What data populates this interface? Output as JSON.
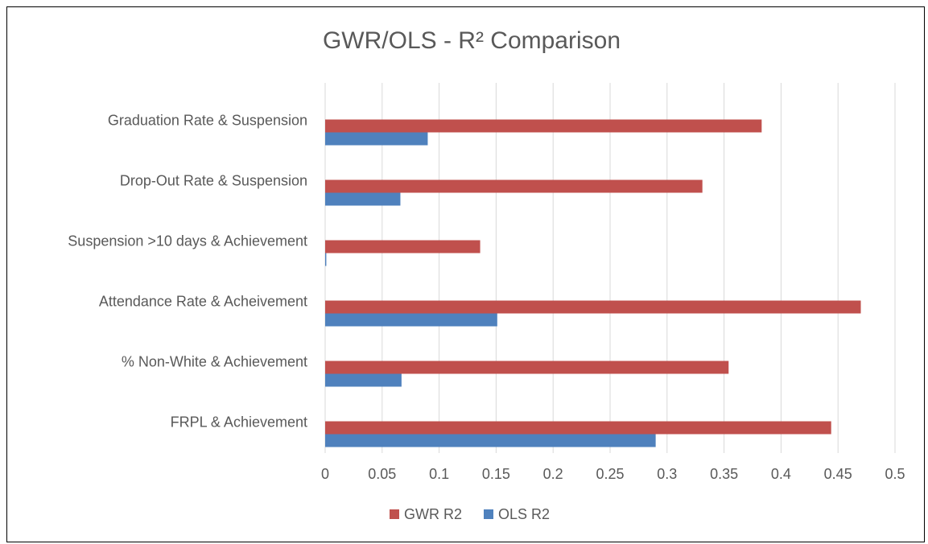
{
  "chart_data": {
    "type": "barh",
    "title": "GWR/OLS - R² Comparison",
    "categories": [
      "Graduation Rate & Suspension",
      "Drop-Out Rate & Suspension",
      "Suspension >10 days & Achievement",
      "Attendance Rate & Acheivement",
      "% Non-White & Achievement",
      "FRPL & Achievement"
    ],
    "series": [
      {
        "name": "GWR R2",
        "color": "#c0504d",
        "values": [
          0.383,
          0.331,
          0.136,
          0.47,
          0.354,
          0.444
        ]
      },
      {
        "name": "OLS R2",
        "color": "#4f81bd",
        "values": [
          0.09,
          0.066,
          0.001,
          0.151,
          0.067,
          0.29
        ]
      }
    ],
    "xlim": [
      0,
      0.5
    ],
    "xticks": [
      0,
      0.05,
      0.1,
      0.15,
      0.2,
      0.25,
      0.3,
      0.35,
      0.4,
      0.45,
      0.5
    ],
    "grid": true,
    "legend": "bottom"
  }
}
